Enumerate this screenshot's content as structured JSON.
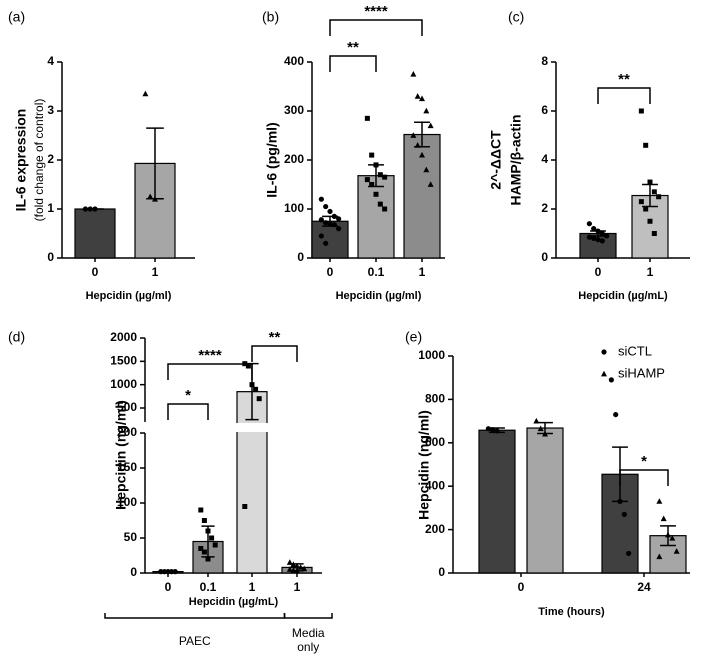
{
  "chart_data": [
    {
      "type": "bar",
      "label": "(a)",
      "ylabel": [
        "IL-6 expression",
        "(fold change of control)"
      ],
      "xlabel": "Hepcidin (µg/ml)",
      "categories": [
        "0",
        "1"
      ],
      "values": [
        1,
        1.93
      ],
      "errors": [
        0,
        0.72
      ],
      "points": [
        [
          1,
          1,
          1
        ],
        [
          3.35,
          1.25,
          1.2
        ]
      ],
      "colors": [
        "#404040",
        "#a6a6a6"
      ],
      "markers": [
        "circle",
        "triangle"
      ],
      "ylim": [
        0,
        4
      ],
      "yticks": [
        0,
        1,
        2,
        3,
        4
      ],
      "comparisons": []
    },
    {
      "type": "bar",
      "label": "(b)",
      "ylabel": [
        "IL-6 (pg/ml)"
      ],
      "xlabel": "Hepcidin (µg/ml)",
      "categories": [
        "0",
        "0.1",
        "1"
      ],
      "values": [
        75,
        168,
        252
      ],
      "errors": [
        10,
        22,
        25
      ],
      "points": [
        [
          120,
          105,
          95,
          85,
          80,
          78,
          72,
          70,
          68,
          60,
          45,
          30
        ],
        [
          285,
          210,
          190,
          170,
          165,
          160,
          150,
          130,
          110,
          100
        ],
        [
          375,
          330,
          325,
          300,
          270,
          250,
          230,
          210,
          180,
          150
        ]
      ],
      "colors": [
        "#404040",
        "#a6a6a6",
        "#8c8c8c"
      ],
      "markers": [
        "circle",
        "square",
        "triangle"
      ],
      "ylim": [
        0,
        400
      ],
      "yticks": [
        0,
        100,
        200,
        300,
        400
      ],
      "comparisons": [
        {
          "from": 0,
          "to": 1,
          "label": "**"
        },
        {
          "from": 0,
          "to": 2,
          "label": "****"
        }
      ]
    },
    {
      "type": "bar",
      "label": "(c)",
      "ylabel": [
        "2^-ΔΔCT",
        "HAMP/β-actin"
      ],
      "xlabel": "Hepcidin (µg/mL)",
      "categories": [
        "0",
        "1"
      ],
      "values": [
        1,
        2.55
      ],
      "errors": [
        0.1,
        0.45
      ],
      "points": [
        [
          1.4,
          1.2,
          1.1,
          1.0,
          0.9,
          0.85,
          0.8,
          0.75,
          0.7
        ],
        [
          6,
          4.6,
          3.1,
          2.7,
          2.5,
          2.3,
          2.0,
          1.5,
          1.0
        ]
      ],
      "colors": [
        "#404040",
        "#bfbfbf"
      ],
      "markers": [
        "circle",
        "square"
      ],
      "ylim": [
        0,
        8
      ],
      "yticks": [
        0,
        2,
        4,
        6,
        8
      ],
      "comparisons": [
        {
          "from": 0,
          "to": 1,
          "label": "**"
        }
      ]
    },
    {
      "type": "bar",
      "label": "(d)",
      "ylabel": [
        "Hepcidin (ng/ml)"
      ],
      "xlabel": "Hepcidin (µg/mL)",
      "categories": [
        "0",
        "0.1",
        "1",
        "1"
      ],
      "values": [
        2,
        45,
        850,
        8
      ],
      "errors": [
        1,
        22,
        600,
        5
      ],
      "points": [
        [
          2,
          2,
          2,
          2,
          2
        ],
        [
          90,
          75,
          60,
          50,
          40,
          35,
          30,
          20
        ],
        [
          1450,
          1400,
          1000,
          900,
          700,
          95
        ],
        [
          15,
          12,
          10,
          8,
          6,
          5,
          4,
          3
        ]
      ],
      "colors": [
        "#404040",
        "#8c8c8c",
        "#d9d9d9",
        "#8c8c8c"
      ],
      "markers": [
        "circle",
        "square",
        "square",
        "triangle"
      ],
      "segments": [
        {
          "ylim": [
            0,
            200
          ],
          "yticks": [
            0,
            50,
            100,
            150,
            200
          ]
        },
        {
          "ylim": [
            200,
            2000
          ],
          "yticks": [
            500,
            1000,
            1500,
            2000
          ]
        }
      ],
      "comparisons": [
        {
          "from": 0,
          "to": 1,
          "label": "*"
        },
        {
          "from": 0,
          "to": 2,
          "label": "****"
        },
        {
          "from": 2,
          "to": 3,
          "label": "**"
        }
      ],
      "groups": [
        {
          "label": "PAEC",
          "from": 0,
          "to": 2
        },
        {
          "label": "Media only",
          "from": 3,
          "to": 3
        }
      ]
    },
    {
      "type": "bar",
      "label": "(e)",
      "ylabel": [
        "Hepcidin (ng/ml)"
      ],
      "xlabel": "Time (hours)",
      "categories": [
        "0",
        "24"
      ],
      "series": [
        {
          "name": "siCTL",
          "color": "#404040",
          "marker": "circle",
          "values": [
            658,
            455
          ],
          "errors": [
            10,
            125
          ],
          "points": [
            [
              665,
              660,
              655
            ],
            [
              890,
              730,
              330,
              270,
              90
            ]
          ]
        },
        {
          "name": "siHAMP",
          "color": "#a6a6a6",
          "marker": "triangle",
          "values": [
            668,
            172
          ],
          "errors": [
            25,
            45
          ],
          "points": [
            [
              700,
              665,
              640
            ],
            [
              330,
              250,
              175,
              160,
              100,
              75
            ]
          ]
        }
      ],
      "ylim": [
        0,
        1000
      ],
      "yticks": [
        0,
        200,
        400,
        600,
        800,
        1000
      ],
      "comparisons": [
        {
          "category": 1,
          "from": 0,
          "to": 1,
          "label": "*"
        }
      ],
      "legend": "upper right"
    }
  ]
}
